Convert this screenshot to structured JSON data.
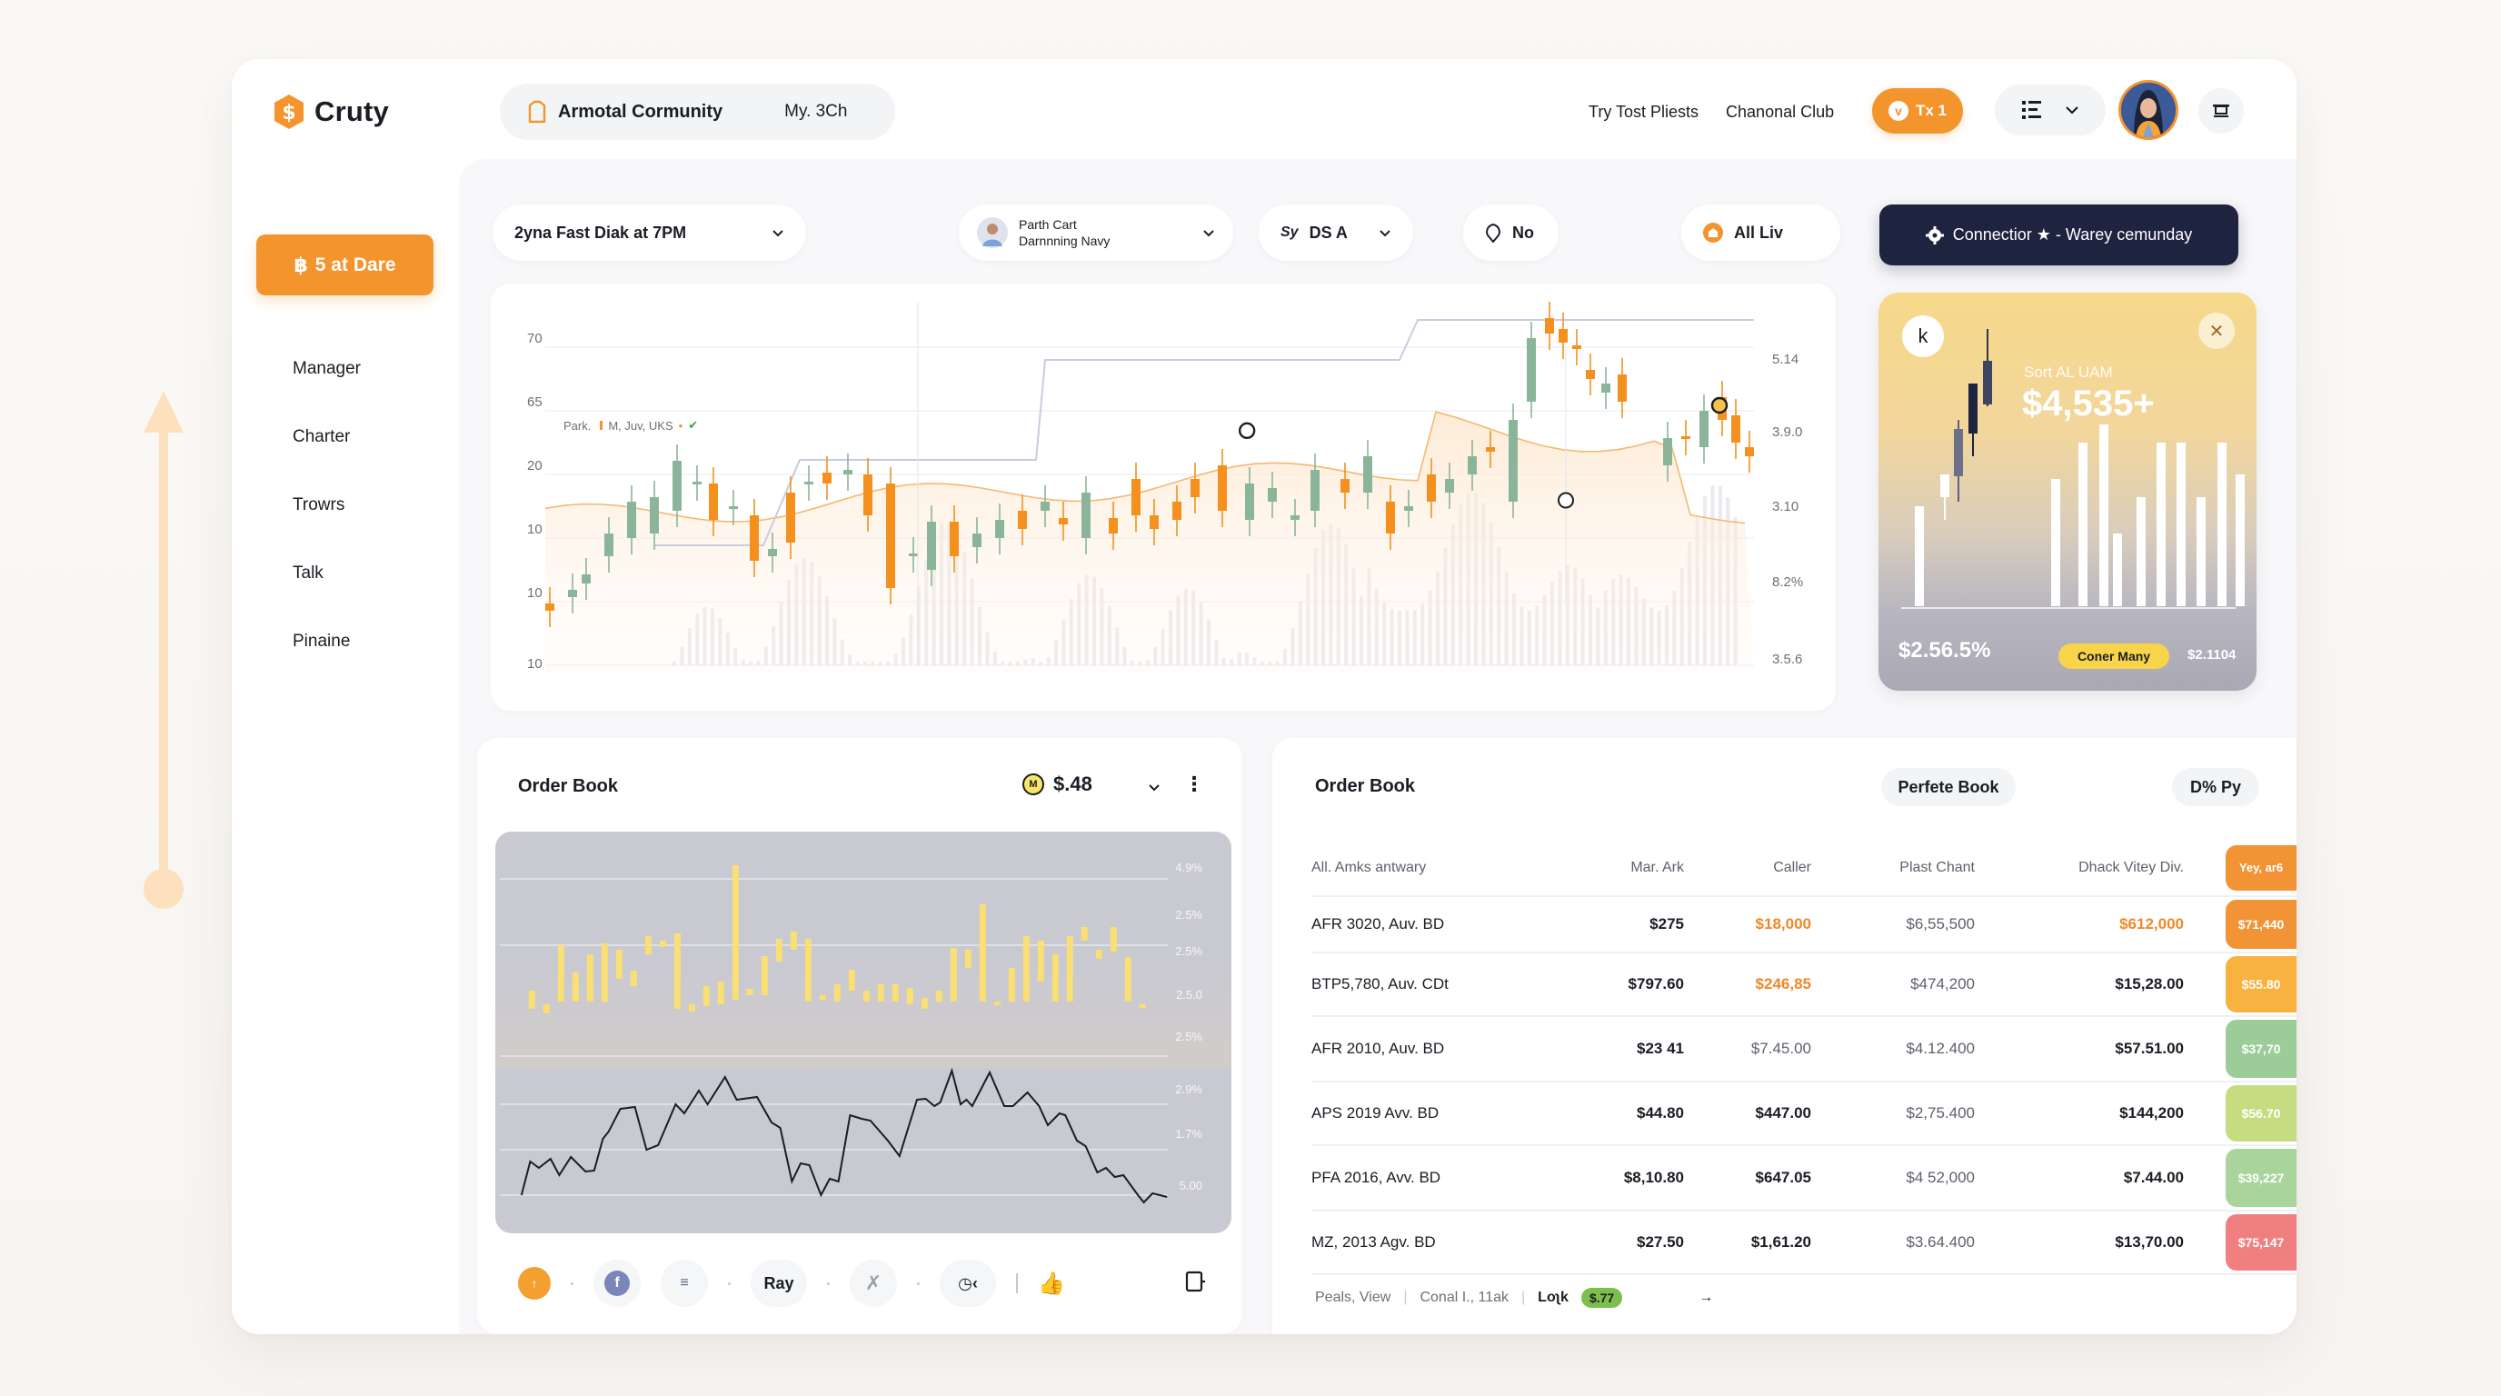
{
  "app": {
    "name": "Cruty",
    "brand_color": "#f4942c",
    "dark_color": "#1e2340"
  },
  "header": {
    "pill_nav": {
      "community": "Armotal Cormunity",
      "secondary": "My. 3Ch"
    },
    "links": [
      "Try Tost Pliests",
      "Chanonal Club"
    ],
    "tx_button": "Tx 1",
    "tx_icon": "v"
  },
  "sidebar": {
    "cta_label": "5 at Dare",
    "cta_icon": "bitcoin-icon",
    "items": [
      {
        "label": "Manager"
      },
      {
        "label": "Charter"
      },
      {
        "label": "Trowrs"
      },
      {
        "label": "Talk"
      },
      {
        "label": "Pinaine"
      }
    ]
  },
  "filters": {
    "schedule": "2yna Fast Diak at 7PM",
    "user": {
      "name": "Parth Cart",
      "sub": "Darnnning Navy"
    },
    "pair": "DS A",
    "pair_icon_text": "Sy",
    "alert": "No",
    "all": "All Liv",
    "connect_button": "Connectior ★ - Warey cemunday"
  },
  "main_chart": {
    "legend": "Park.",
    "legend_series": "M, Juv, UKS",
    "left_ticks": [
      "70",
      "65",
      "20",
      "10",
      "10",
      "10"
    ],
    "right_ticks": [
      "5.14",
      "3.9.0",
      "3.10",
      "8.2%",
      "3.5.6"
    ]
  },
  "promo_card": {
    "k_label": "k",
    "subtitle": "Sort AL UAM",
    "value": "$4,535+",
    "percent": "$2.56.5%",
    "badge": "Coner Many",
    "amount": "$2.1104"
  },
  "order_book_left": {
    "title": "Order Book",
    "price": "$.48",
    "coin_symbol": "M",
    "y_ticks": [
      "4.9%",
      "2.5%",
      "2.5%",
      "2.5.0",
      "2.5%",
      "2.9%",
      "1.7%",
      "5.00"
    ],
    "toolbar": {
      "ray_label": "Ray"
    }
  },
  "order_book_right": {
    "title": "Order Book",
    "pill_1": "Perfete Book",
    "pill_2": "D% Py",
    "columns": [
      "All.  Amks antwary",
      "Mar.  Ark",
      "Caller",
      "Plast Chant",
      "Dhack Vitey Div.",
      "Yey, ar6"
    ],
    "rows": [
      {
        "name": "AFR 3020, Auv. BD",
        "mar": "$275",
        "caller": "$18,000",
        "plast": "$6,55,500",
        "dhack": "$612,000",
        "tag": "$71,440",
        "tag_color": "#f29436"
      },
      {
        "name": "BTP5,780, Auv. CDt",
        "mar": "$797.60",
        "caller": "$246,85",
        "plast": "$474,200",
        "dhack": "$15,28.00",
        "tag": "$55.80",
        "tag_color": "#f7b240"
      },
      {
        "name": "AFR 2010, Auv. BD",
        "mar": "$23 41",
        "caller": "$7.45.00",
        "plast": "$4.12.400",
        "dhack": "$57.51.00",
        "tag": "$37,70",
        "tag_color": "#9ccc98"
      },
      {
        "name": "APS 2019  Avv. BD",
        "mar": "$44.80",
        "caller": "$447.00",
        "plast": "$2,75.400",
        "dhack": "$144,200",
        "tag": "$56.70",
        "tag_color": "#c6dc80"
      },
      {
        "name": "PFA 2016, Avv. BD",
        "mar": "$8,10.80",
        "caller": "$647.05",
        "plast": "$4 52,000",
        "dhack": "$7.44.00",
        "tag": "$39,227",
        "tag_color": "#a9d59c"
      },
      {
        "name": "MZ, 2013 Agv. BD",
        "mar": "$27.50",
        "caller": "$1,61.20",
        "plast": "$3.64.400",
        "dhack": "$13,70.00",
        "tag": "$75,147",
        "tag_color": "#f08080"
      }
    ],
    "footer": {
      "view": "Peals, View",
      "count": "Conal I., 11ak",
      "lock_label": "Loʅk",
      "lock_value": "$.77",
      "arrow": "→"
    }
  }
}
